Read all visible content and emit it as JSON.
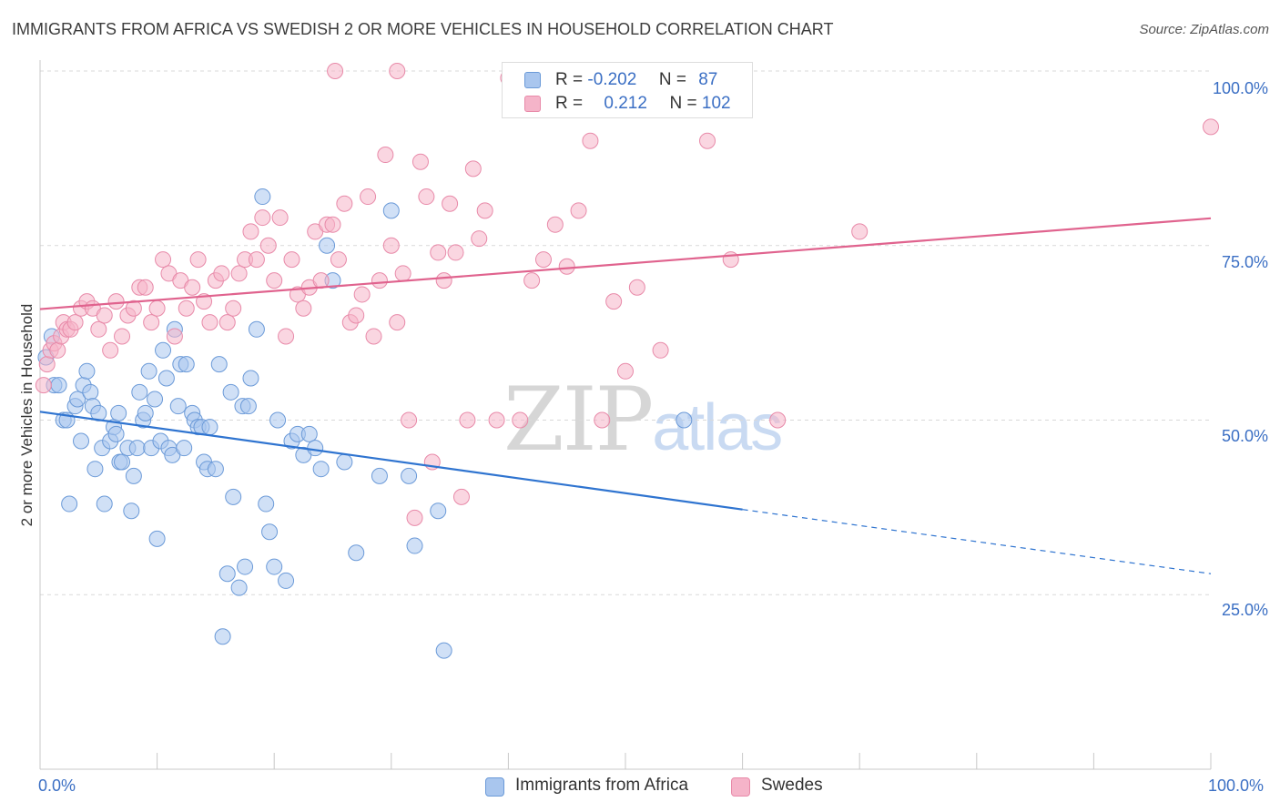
{
  "title": "IMMIGRANTS FROM AFRICA VS SWEDISH 2 OR MORE VEHICLES IN HOUSEHOLD CORRELATION CHART",
  "source": "Source: ZipAtlas.com",
  "watermark": {
    "zip": "ZIP",
    "atlas": "atlas"
  },
  "legend": {
    "rows": [
      {
        "r_label": "R =",
        "r_value": "-0.202",
        "n_label": "N =",
        "n_value": "87",
        "color": "#a9c6ee"
      },
      {
        "r_label": "R =",
        "r_value": "0.212",
        "n_label": "N =",
        "n_value": "102",
        "color": "#f5b4c9"
      }
    ]
  },
  "bottom_legend": [
    {
      "label": "Immigrants from Africa",
      "color": "#a9c6ee"
    },
    {
      "label": "Swedes",
      "color": "#f5b4c9"
    }
  ],
  "colors": {
    "blue_fill": "#a9c6ee",
    "blue_stroke": "#6b9ad8",
    "blue_line": "#2f74d0",
    "pink_fill": "#f5b4c9",
    "pink_stroke": "#e88aa9",
    "pink_line": "#e0638e",
    "grid": "#d9d9d9",
    "axis_text": "#3b6fc4"
  },
  "chart_data": {
    "type": "scatter",
    "title": "IMMIGRANTS FROM AFRICA VS SWEDISH 2 OR MORE VEHICLES IN HOUSEHOLD CORRELATION CHART",
    "xlabel": "",
    "ylabel": "2 or more Vehicles in Household",
    "xlim": [
      0,
      100
    ],
    "ylim": [
      0,
      105
    ],
    "x_tick_labels": [
      "0.0%",
      "100.0%"
    ],
    "y_ticks": [
      25,
      50,
      75,
      100
    ],
    "y_tick_labels": [
      "25.0%",
      "50.0%",
      "75.0%",
      "100.0%"
    ],
    "grid": true,
    "legend_position": "top-center",
    "series": [
      {
        "name": "Immigrants from Africa",
        "color": "#a9c6ee",
        "trend": {
          "x0": 0,
          "y0": 51.2,
          "x1": 60,
          "y1": 37.2,
          "dashed_to_x": 100,
          "dashed_to_y": 28.0
        },
        "points": [
          [
            0.5,
            59
          ],
          [
            1.2,
            55
          ],
          [
            1.6,
            55
          ],
          [
            2.0,
            50
          ],
          [
            2.3,
            50
          ],
          [
            2.5,
            38
          ],
          [
            3.0,
            52
          ],
          [
            3.2,
            53
          ],
          [
            3.5,
            47
          ],
          [
            3.7,
            55
          ],
          [
            4.0,
            57
          ],
          [
            4.3,
            54
          ],
          [
            4.5,
            52
          ],
          [
            4.7,
            43
          ],
          [
            5.0,
            51
          ],
          [
            5.3,
            46
          ],
          [
            5.5,
            38
          ],
          [
            6.0,
            47
          ],
          [
            6.3,
            49
          ],
          [
            6.5,
            48
          ],
          [
            6.8,
            44
          ],
          [
            7.0,
            44
          ],
          [
            7.5,
            46
          ],
          [
            7.8,
            37
          ],
          [
            8.0,
            42
          ],
          [
            8.3,
            46
          ],
          [
            8.5,
            54
          ],
          [
            8.8,
            50
          ],
          [
            9.0,
            51
          ],
          [
            9.3,
            57
          ],
          [
            9.5,
            46
          ],
          [
            9.8,
            53
          ],
          [
            10.0,
            33
          ],
          [
            10.3,
            47
          ],
          [
            10.5,
            60
          ],
          [
            10.8,
            56
          ],
          [
            11.0,
            46
          ],
          [
            11.3,
            45
          ],
          [
            11.5,
            63
          ],
          [
            11.8,
            52
          ],
          [
            12.0,
            58
          ],
          [
            12.3,
            46
          ],
          [
            12.5,
            58
          ],
          [
            13.0,
            51
          ],
          [
            13.2,
            50
          ],
          [
            13.5,
            49
          ],
          [
            13.8,
            49
          ],
          [
            14.0,
            44
          ],
          [
            14.3,
            43
          ],
          [
            14.5,
            49
          ],
          [
            15.0,
            43
          ],
          [
            15.3,
            58
          ],
          [
            15.6,
            19
          ],
          [
            16.0,
            28
          ],
          [
            16.3,
            54
          ],
          [
            16.5,
            39
          ],
          [
            17.0,
            26
          ],
          [
            17.3,
            52
          ],
          [
            17.5,
            29
          ],
          [
            17.8,
            52
          ],
          [
            18.0,
            56
          ],
          [
            18.5,
            63
          ],
          [
            19.0,
            82
          ],
          [
            19.3,
            38
          ],
          [
            19.6,
            34
          ],
          [
            20.0,
            29
          ],
          [
            20.3,
            50
          ],
          [
            21.0,
            27
          ],
          [
            21.5,
            47
          ],
          [
            22.0,
            48
          ],
          [
            22.5,
            45
          ],
          [
            23.0,
            48
          ],
          [
            23.5,
            46
          ],
          [
            24.0,
            43
          ],
          [
            24.5,
            75
          ],
          [
            25.0,
            70
          ],
          [
            26.0,
            44
          ],
          [
            27.0,
            31
          ],
          [
            29.0,
            42
          ],
          [
            30.0,
            80
          ],
          [
            31.5,
            42
          ],
          [
            32.0,
            32
          ],
          [
            34.0,
            37
          ],
          [
            34.5,
            17
          ],
          [
            55.0,
            50
          ],
          [
            1.0,
            62
          ],
          [
            6.7,
            51
          ]
        ]
      },
      {
        "name": "Swedes",
        "color": "#f5b4c9",
        "trend": {
          "x0": 0,
          "y0": 65.9,
          "x1": 100,
          "y1": 78.9
        },
        "points": [
          [
            0.3,
            55
          ],
          [
            0.6,
            58
          ],
          [
            0.9,
            60
          ],
          [
            1.2,
            61
          ],
          [
            1.5,
            60
          ],
          [
            1.8,
            62
          ],
          [
            2.0,
            64
          ],
          [
            2.3,
            63
          ],
          [
            2.6,
            63
          ],
          [
            3.0,
            64
          ],
          [
            3.5,
            66
          ],
          [
            4.0,
            67
          ],
          [
            4.5,
            66
          ],
          [
            5.0,
            63
          ],
          [
            5.5,
            65
          ],
          [
            6.0,
            60
          ],
          [
            6.5,
            67
          ],
          [
            7.0,
            62
          ],
          [
            7.5,
            65
          ],
          [
            8.0,
            66
          ],
          [
            8.5,
            69
          ],
          [
            9.0,
            69
          ],
          [
            9.5,
            64
          ],
          [
            10.0,
            66
          ],
          [
            10.5,
            73
          ],
          [
            11.0,
            71
          ],
          [
            11.5,
            62
          ],
          [
            12.0,
            70
          ],
          [
            12.5,
            66
          ],
          [
            13.0,
            69
          ],
          [
            13.5,
            73
          ],
          [
            14.0,
            67
          ],
          [
            14.5,
            64
          ],
          [
            15.0,
            70
          ],
          [
            15.5,
            71
          ],
          [
            16.0,
            64
          ],
          [
            16.5,
            66
          ],
          [
            17.0,
            71
          ],
          [
            17.5,
            73
          ],
          [
            18.0,
            77
          ],
          [
            18.5,
            73
          ],
          [
            19.0,
            79
          ],
          [
            19.5,
            75
          ],
          [
            20.0,
            70
          ],
          [
            20.5,
            79
          ],
          [
            21.0,
            62
          ],
          [
            21.5,
            73
          ],
          [
            22.0,
            68
          ],
          [
            22.5,
            66
          ],
          [
            23.0,
            69
          ],
          [
            23.5,
            77
          ],
          [
            24.0,
            70
          ],
          [
            24.5,
            78
          ],
          [
            25.0,
            78
          ],
          [
            25.5,
            73
          ],
          [
            26.0,
            81
          ],
          [
            26.5,
            64
          ],
          [
            27.0,
            65
          ],
          [
            27.5,
            68
          ],
          [
            28.0,
            82
          ],
          [
            28.5,
            62
          ],
          [
            29.0,
            70
          ],
          [
            29.5,
            88
          ],
          [
            30.0,
            75
          ],
          [
            30.5,
            64
          ],
          [
            31.0,
            71
          ],
          [
            31.5,
            50
          ],
          [
            32.0,
            36
          ],
          [
            32.5,
            87
          ],
          [
            33.0,
            82
          ],
          [
            33.5,
            44
          ],
          [
            34.0,
            74
          ],
          [
            34.5,
            70
          ],
          [
            35.0,
            81
          ],
          [
            35.5,
            74
          ],
          [
            36.0,
            39
          ],
          [
            36.5,
            50
          ],
          [
            37.0,
            86
          ],
          [
            37.5,
            76
          ],
          [
            38.0,
            80
          ],
          [
            39.0,
            50
          ],
          [
            40.0,
            99
          ],
          [
            41.0,
            50
          ],
          [
            42.0,
            70
          ],
          [
            43.0,
            73
          ],
          [
            44.0,
            78
          ],
          [
            45.0,
            72
          ],
          [
            46.0,
            80
          ],
          [
            47.0,
            90
          ],
          [
            48.0,
            50
          ],
          [
            49.0,
            67
          ],
          [
            50.0,
            57
          ],
          [
            51.0,
            69
          ],
          [
            53.0,
            60
          ],
          [
            57.0,
            90
          ],
          [
            59.0,
            73
          ],
          [
            63.0,
            50
          ],
          [
            70.0,
            77
          ],
          [
            100.0,
            92
          ],
          [
            25.2,
            100
          ],
          [
            30.5,
            100
          ],
          [
            58.5,
            100
          ]
        ]
      }
    ]
  }
}
